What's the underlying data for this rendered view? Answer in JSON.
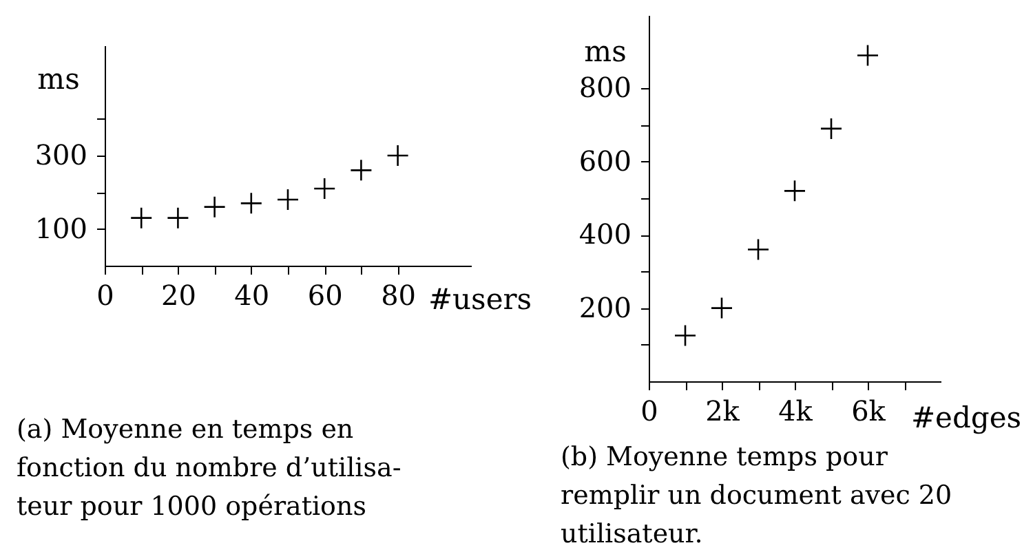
{
  "chart_data": [
    {
      "type": "scatter",
      "xlabel": "#users",
      "ylabel": "ms",
      "annotations": [
        "(a) Moyenne en temps en\nfonction du nombre d’utilisa-\nteur pour 1000 opérations"
      ],
      "x": [
        10,
        20,
        30,
        40,
        50,
        60,
        70,
        80
      ],
      "series": [
        {
          "color": "#000000",
          "values": [
            130,
            130,
            160,
            170,
            180,
            210,
            260,
            300
          ]
        }
      ],
      "xlim": [
        0,
        100
      ],
      "ylim": [
        0,
        600
      ],
      "xticks": [
        0,
        {
          "value": 10,
          "label": null
        },
        20,
        {
          "value": 30,
          "label": null
        },
        40,
        {
          "value": 50,
          "label": null
        },
        60,
        {
          "value": 70,
          "label": null
        },
        80
      ],
      "yticks": [
        100,
        {
          "value": 200,
          "label": null
        },
        300,
        {
          "value": 400,
          "label": null
        }
      ],
      "marker": "cross"
    },
    {
      "type": "scatter",
      "xlabel": "#edges",
      "ylabel": "ms",
      "annotations": [
        "(b) Moyenne temps pour\nremplir un document avec 20\nutilisateur."
      ],
      "x": [
        1000,
        2000,
        3000,
        4000,
        5000,
        6000
      ],
      "series": [
        {
          "color": "#000000",
          "values": [
            125,
            200,
            360,
            520,
            690,
            890
          ]
        }
      ],
      "xlim": [
        0,
        8000
      ],
      "ylim": [
        0,
        1000
      ],
      "xticks": [
        0,
        {
          "value": 1000,
          "label": null
        },
        {
          "value": 2000,
          "label": "2k"
        },
        {
          "value": 3000,
          "label": null
        },
        {
          "value": 4000,
          "label": "4k"
        },
        {
          "value": 5000,
          "label": null
        },
        {
          "value": 6000,
          "label": "6k"
        },
        {
          "value": 7000,
          "label": null
        }
      ],
      "yticks": [
        {
          "value": 100,
          "label": null
        },
        200,
        {
          "value": 300,
          "label": null
        },
        400,
        {
          "value": 500,
          "label": null
        },
        600,
        {
          "value": 700,
          "label": null
        },
        800
      ],
      "marker": "cross"
    }
  ]
}
